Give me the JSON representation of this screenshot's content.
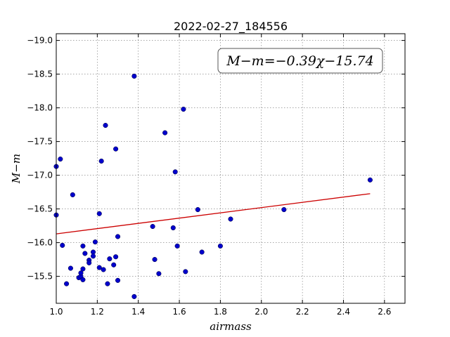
{
  "chart_data": {
    "type": "scatter",
    "title": "2022-02-27_184556",
    "xlabel": "airmass",
    "ylabel": "M−m",
    "xlim": [
      1.0,
      2.7
    ],
    "ylim": [
      -19.1,
      -15.1
    ],
    "y_inverted": true,
    "grid": true,
    "xticks": [
      1.0,
      1.2,
      1.4,
      1.6,
      1.8,
      2.0,
      2.2,
      2.4,
      2.6
    ],
    "yticks": [
      -15.5,
      -16.0,
      -16.5,
      -17.0,
      -17.5,
      -18.0,
      -18.5,
      -19.0
    ],
    "xtick_labels": [
      "1.0",
      "1.2",
      "1.4",
      "1.6",
      "1.8",
      "2.0",
      "2.2",
      "2.4",
      "2.6"
    ],
    "ytick_labels": [
      "−15.5",
      "−16.0",
      "−16.5",
      "−17.0",
      "−17.5",
      "−18.0",
      "−18.5",
      "−19.0"
    ],
    "points": {
      "color": "#0000cc",
      "x": [
        1.0,
        1.0,
        1.02,
        1.03,
        1.05,
        1.07,
        1.08,
        1.11,
        1.12,
        1.12,
        1.13,
        1.13,
        1.13,
        1.14,
        1.16,
        1.16,
        1.18,
        1.18,
        1.19,
        1.21,
        1.21,
        1.22,
        1.23,
        1.24,
        1.25,
        1.26,
        1.28,
        1.29,
        1.29,
        1.3,
        1.3,
        1.38,
        1.38,
        1.47,
        1.48,
        1.5,
        1.53,
        1.57,
        1.58,
        1.59,
        1.62,
        1.63,
        1.69,
        1.71,
        1.8,
        1.85,
        2.11,
        2.53
      ],
      "y": [
        -16.41,
        -17.13,
        -17.24,
        -15.96,
        -15.39,
        -15.62,
        -16.71,
        -15.48,
        -15.5,
        -15.55,
        -15.45,
        -15.61,
        -15.95,
        -15.84,
        -15.74,
        -15.7,
        -15.86,
        -15.8,
        -16.01,
        -15.63,
        -16.43,
        -17.21,
        -15.6,
        -17.74,
        -15.39,
        -15.76,
        -15.67,
        -15.79,
        -17.39,
        -15.44,
        -16.09,
        -15.2,
        -18.47,
        -16.24,
        -15.75,
        -15.54,
        -17.63,
        -16.22,
        -17.05,
        -15.95,
        -17.98,
        -15.57,
        -16.49,
        -15.86,
        -15.95,
        -16.35,
        -16.49,
        -16.93
      ]
    },
    "fit_line": {
      "color": "#cc0000",
      "slope": -0.39,
      "intercept": -15.74,
      "x_range": [
        1.0,
        2.53
      ]
    },
    "annotation": {
      "text": "M−m=−0.39χ−15.74",
      "placement": "top-right"
    }
  }
}
